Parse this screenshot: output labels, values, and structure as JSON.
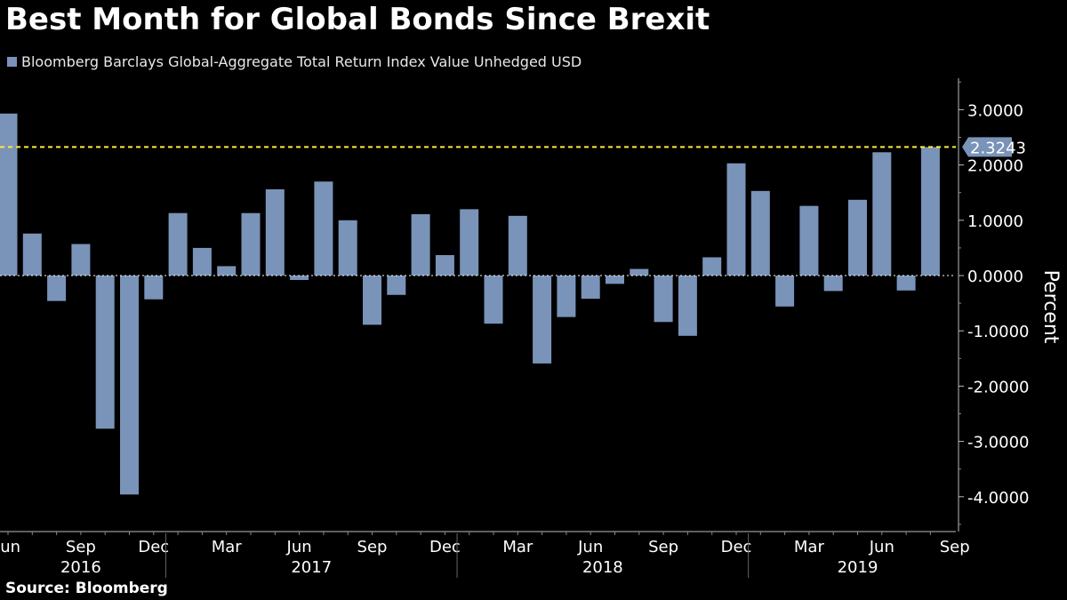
{
  "chart_data": {
    "type": "bar",
    "title": "Best Month for Global Bonds Since Brexit",
    "legend": "Bloomberg Barclays Global-Aggregate Total Return Index Value Unhedged USD",
    "ylabel": "Percent",
    "ylim": [
      -4.6,
      3.6
    ],
    "yticks": [
      3,
      2,
      1,
      0,
      -1,
      -2,
      -3,
      -4
    ],
    "ytick_labels": [
      "3.0000",
      "2.0000",
      "1.0000",
      "0.0000",
      "-1.0000",
      "-2.0000",
      "-3.0000",
      "-4.0000"
    ],
    "series_color": "#7a93b8",
    "categories": [
      "2016-06",
      "2016-07",
      "2016-08",
      "2016-09",
      "2016-10",
      "2016-11",
      "2016-12",
      "2017-01",
      "2017-02",
      "2017-03",
      "2017-04",
      "2017-05",
      "2017-06",
      "2017-07",
      "2017-08",
      "2017-09",
      "2017-10",
      "2017-11",
      "2017-12",
      "2018-01",
      "2018-02",
      "2018-03",
      "2018-04",
      "2018-05",
      "2018-06",
      "2018-07",
      "2018-08",
      "2018-09",
      "2018-10",
      "2018-11",
      "2018-12",
      "2019-01",
      "2019-02",
      "2019-03",
      "2019-04",
      "2019-05",
      "2019-06",
      "2019-07",
      "2019-08"
    ],
    "values": [
      2.93,
      0.76,
      -0.46,
      0.57,
      -2.77,
      -3.96,
      -0.43,
      1.13,
      0.5,
      0.17,
      1.13,
      1.56,
      -0.08,
      1.7,
      1.0,
      -0.89,
      -0.35,
      1.11,
      0.37,
      1.2,
      -0.87,
      1.08,
      -1.59,
      -0.75,
      -0.42,
      -0.15,
      0.12,
      -0.84,
      -1.09,
      0.33,
      2.03,
      1.53,
      -0.56,
      1.26,
      -0.28,
      1.37,
      2.23,
      -0.27,
      2.3243
    ],
    "reference_line": {
      "value": 2.3243,
      "label": "2.3243",
      "color": "#ffeb3b"
    },
    "x_month_labels": [
      {
        "index": 0,
        "label": "Jun"
      },
      {
        "index": 3,
        "label": "Sep"
      },
      {
        "index": 6,
        "label": "Dec"
      },
      {
        "index": 9,
        "label": "Mar"
      },
      {
        "index": 12,
        "label": "Jun"
      },
      {
        "index": 15,
        "label": "Sep"
      },
      {
        "index": 18,
        "label": "Dec"
      },
      {
        "index": 21,
        "label": "Mar"
      },
      {
        "index": 24,
        "label": "Jun"
      },
      {
        "index": 27,
        "label": "Sep"
      },
      {
        "index": 30,
        "label": "Dec"
      },
      {
        "index": 33,
        "label": "Mar"
      },
      {
        "index": 36,
        "label": "Jun"
      },
      {
        "index": 39,
        "label": "Sep"
      }
    ],
    "x_year_labels": [
      {
        "label": "2016",
        "start_index": 0,
        "end_index": 7
      },
      {
        "label": "2017",
        "start_index": 7,
        "end_index": 19
      },
      {
        "label": "2018",
        "start_index": 19,
        "end_index": 31
      },
      {
        "label": "2019",
        "start_index": 31,
        "end_index": 40
      }
    ],
    "year_separators": [
      7,
      19,
      31
    ]
  },
  "source": "Source: Bloomberg"
}
